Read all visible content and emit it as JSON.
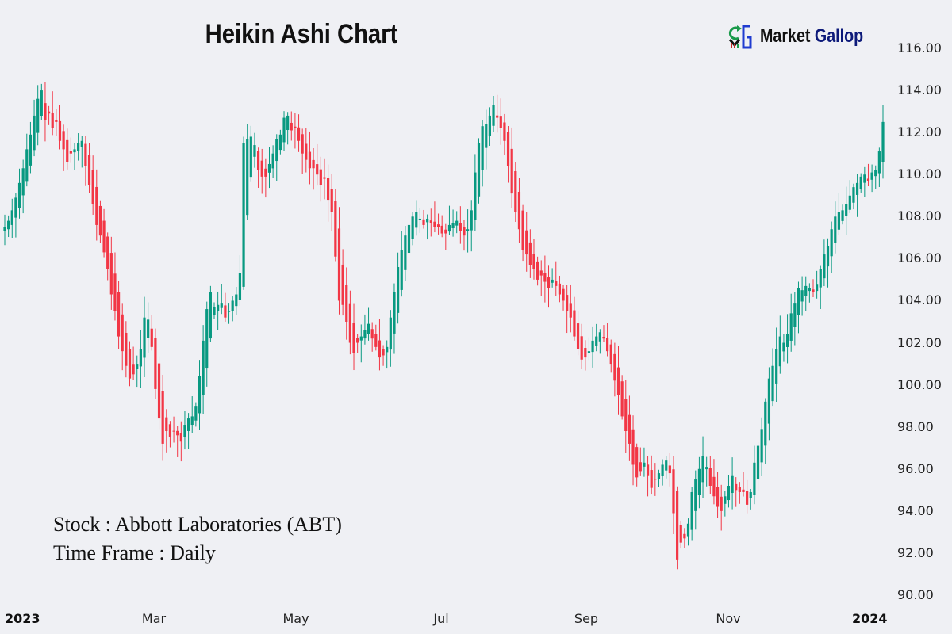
{
  "header": {
    "title": "Heikin Ashi Chart",
    "logo": {
      "icon": "market-gallop-logo-icon",
      "text_part1": "Market",
      "text_part2": "Gallop"
    }
  },
  "info": {
    "stock_line": "Stock : Abbott Laboratories (ABT)",
    "timeframe_line": "Time Frame : Daily"
  },
  "colors": {
    "background": "#eff0f4",
    "up": "#089981",
    "down": "#f23645",
    "text": "#222222"
  },
  "chart_data": {
    "type": "candlestick",
    "subtype": "heikin-ashi",
    "title": "Heikin Ashi Chart",
    "xlabel": "",
    "ylabel": "",
    "ylim": [
      90,
      116
    ],
    "y_ticks": [
      "116.00",
      "114.00",
      "112.00",
      "110.00",
      "108.00",
      "106.00",
      "104.00",
      "102.00",
      "100.00",
      "98.00",
      "96.00",
      "94.00",
      "92.00",
      "90.00"
    ],
    "x_ticks": [
      {
        "label": "2023",
        "x": 28,
        "bold": true
      },
      {
        "label": "Mar",
        "x": 194,
        "bold": false
      },
      {
        "label": "May",
        "x": 373,
        "bold": false
      },
      {
        "label": "Jul",
        "x": 556,
        "bold": false
      },
      {
        "label": "Sep",
        "x": 739,
        "bold": false
      },
      {
        "label": "Nov",
        "x": 918,
        "bold": false
      },
      {
        "label": "2024",
        "x": 1096,
        "bold": true
      }
    ],
    "grid": false,
    "legend": "none",
    "key_levels": {
      "jan_high": 115.7,
      "mar_low": 96.5,
      "apr_high": 113.0,
      "may_low": 100.5,
      "jul_high": 115.8,
      "oct_low": 89.8,
      "dec_close": 112.5
    },
    "closes": [
      107.5,
      107.8,
      108.3,
      108.9,
      109.6,
      110.3,
      111.2,
      111.9,
      112.8,
      113.6,
      114.0,
      112.6,
      112.9,
      112.2,
      112.5,
      111.6,
      111.2,
      110.6,
      111.0,
      111.2,
      111.5,
      111.6,
      110.4,
      109.5,
      108.6,
      107.6,
      107.1,
      106.3,
      105.5,
      104.3,
      103.5,
      102.3,
      101.6,
      100.9,
      100.3,
      100.5,
      101.0,
      101.7,
      103.2,
      103.1,
      101.8,
      99.8,
      98.4,
      97.2,
      97.8,
      97.5,
      97.8,
      97.6,
      97.3,
      98.1,
      98.4,
      98.5,
      99.0,
      100.4,
      102.1,
      103.6,
      104.4,
      103.7,
      103.8,
      103.9,
      103.2,
      103.5,
      104.0,
      104.3,
      105.3,
      111.5,
      111.7,
      111.8,
      111.4,
      110.2,
      109.9,
      109.9,
      110.5,
      111.0,
      111.7,
      111.9,
      112.7,
      112.8,
      112.1,
      112.2,
      111.6,
      111.0,
      110.7,
      110.3,
      110.3,
      110.0,
      109.5,
      109.8,
      108.8,
      108.2,
      106.1,
      104.0,
      103.8,
      103.0,
      102.0,
      101.5,
      102.0,
      102.3,
      102.6,
      102.9,
      102.2,
      101.8,
      101.3,
      101.4,
      101.8,
      103.2,
      104.4,
      105.6,
      106.4,
      107.1,
      107.6,
      108.0,
      108.2,
      107.9,
      107.6,
      107.9,
      107.7,
      107.5,
      107.5,
      107.2,
      107.2,
      107.6,
      107.7,
      107.8,
      107.3,
      107.1,
      107.4,
      108.3,
      110.1,
      111.5,
      112.3,
      112.4,
      112.8,
      113.3,
      112.7,
      112.2,
      111.6,
      110.4,
      109.1,
      108.2,
      107.4,
      106.4,
      106.2,
      105.7,
      105.5,
      105.0,
      105.2,
      104.9,
      104.6,
      105.0,
      104.7,
      104.3,
      104.0,
      103.5,
      103.2,
      102.3,
      101.7,
      101.2,
      101.3,
      101.6,
      102.1,
      102.3,
      102.5,
      102.2,
      101.6,
      101.0,
      100.2,
      99.5,
      98.5,
      97.8,
      97.2,
      96.2,
      95.6,
      95.9,
      96.3,
      95.7,
      95.1,
      95.5,
      95.8,
      96.2,
      96.4,
      95.8,
      93.9,
      91.7,
      92.5,
      92.7,
      93.4,
      94.9,
      95.5,
      96.0,
      96.6,
      96.1,
      95.2,
      94.7,
      94.2,
      94.0,
      94.7,
      95.2,
      95.7,
      95.0,
      94.9,
      94.9,
      94.3,
      94.9,
      96.3,
      97.1,
      97.9,
      99.2,
      100.3,
      100.9,
      101.7,
      102.3,
      102.0,
      102.4,
      103.4,
      103.9,
      104.6,
      104.5,
      104.7,
      104.6,
      104.4,
      104.8,
      105.5,
      106.2,
      106.6,
      107.4,
      108.0,
      108.2,
      108.3,
      108.6,
      109.0,
      109.4,
      109.6,
      109.9,
      110.0,
      109.7,
      110.1,
      110.2,
      111.1,
      112.5
    ],
    "x_start": 6,
    "x_end": 1113
  }
}
